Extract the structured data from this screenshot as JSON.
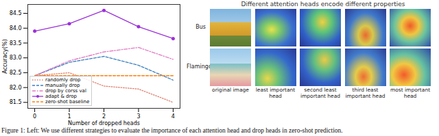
{
  "chart_data": {
    "type": "line",
    "xlabel": "Number of dropped heads",
    "ylabel": "Accuracy(%)",
    "x": [
      0,
      1,
      2,
      3,
      4
    ],
    "xlim": [
      -0.2,
      4.2
    ],
    "xticks": [
      0,
      1,
      2,
      3,
      4
    ],
    "ylim": [
      81.3,
      84.8
    ],
    "yticks": [
      {
        "value": 81.5,
        "label": "81.5"
      },
      {
        "value": 82,
        "label": "82.0"
      },
      {
        "value": 82.5,
        "label": "82.5"
      },
      {
        "value": 83,
        "label": "83.0"
      },
      {
        "value": 83.5,
        "label": "83.5"
      },
      {
        "value": 84,
        "label": "84.0"
      },
      {
        "value": 84.5,
        "label": "84.5"
      }
    ],
    "grid": false,
    "legend": "lower left",
    "series": [
      {
        "name": "randomly drop",
        "color": "#e07b6a",
        "line_style": "dotted",
        "values": [
          82.4,
          82.5,
          82.05,
          81.95,
          81.5
        ]
      },
      {
        "name": "manually drop",
        "color": "#3a7fc1",
        "line_style": "dashed",
        "values": [
          82.4,
          82.85,
          83.05,
          82.75,
          82.25
        ]
      },
      {
        "name": "drop by corss val",
        "color": "#e377c2",
        "line_style": "dashdot",
        "values": [
          82.4,
          82.9,
          83.2,
          83.35,
          82.95
        ]
      },
      {
        "name": "adapt & drop",
        "color": "#9b30d9",
        "line_style": "solid",
        "marker": "o",
        "values": [
          83.9,
          84.15,
          84.6,
          84.05,
          83.65
        ]
      },
      {
        "name": "zero-shot baseline",
        "color": "#ff7f0e",
        "line_style": "dashed",
        "values": [
          82.4,
          82.4,
          82.4,
          82.4,
          82.4
        ]
      }
    ]
  },
  "panel": {
    "title": "Different attention heads encode different properties",
    "rows": [
      "Bus",
      "Flamingo"
    ],
    "columns": [
      "original image",
      "least important head",
      "second least important head",
      "third least important head",
      "most important head"
    ]
  },
  "caption": "Figure 1: Left: We use different strategies to evaluate the importance of each attention head and drop heads in zero-shot prediction."
}
